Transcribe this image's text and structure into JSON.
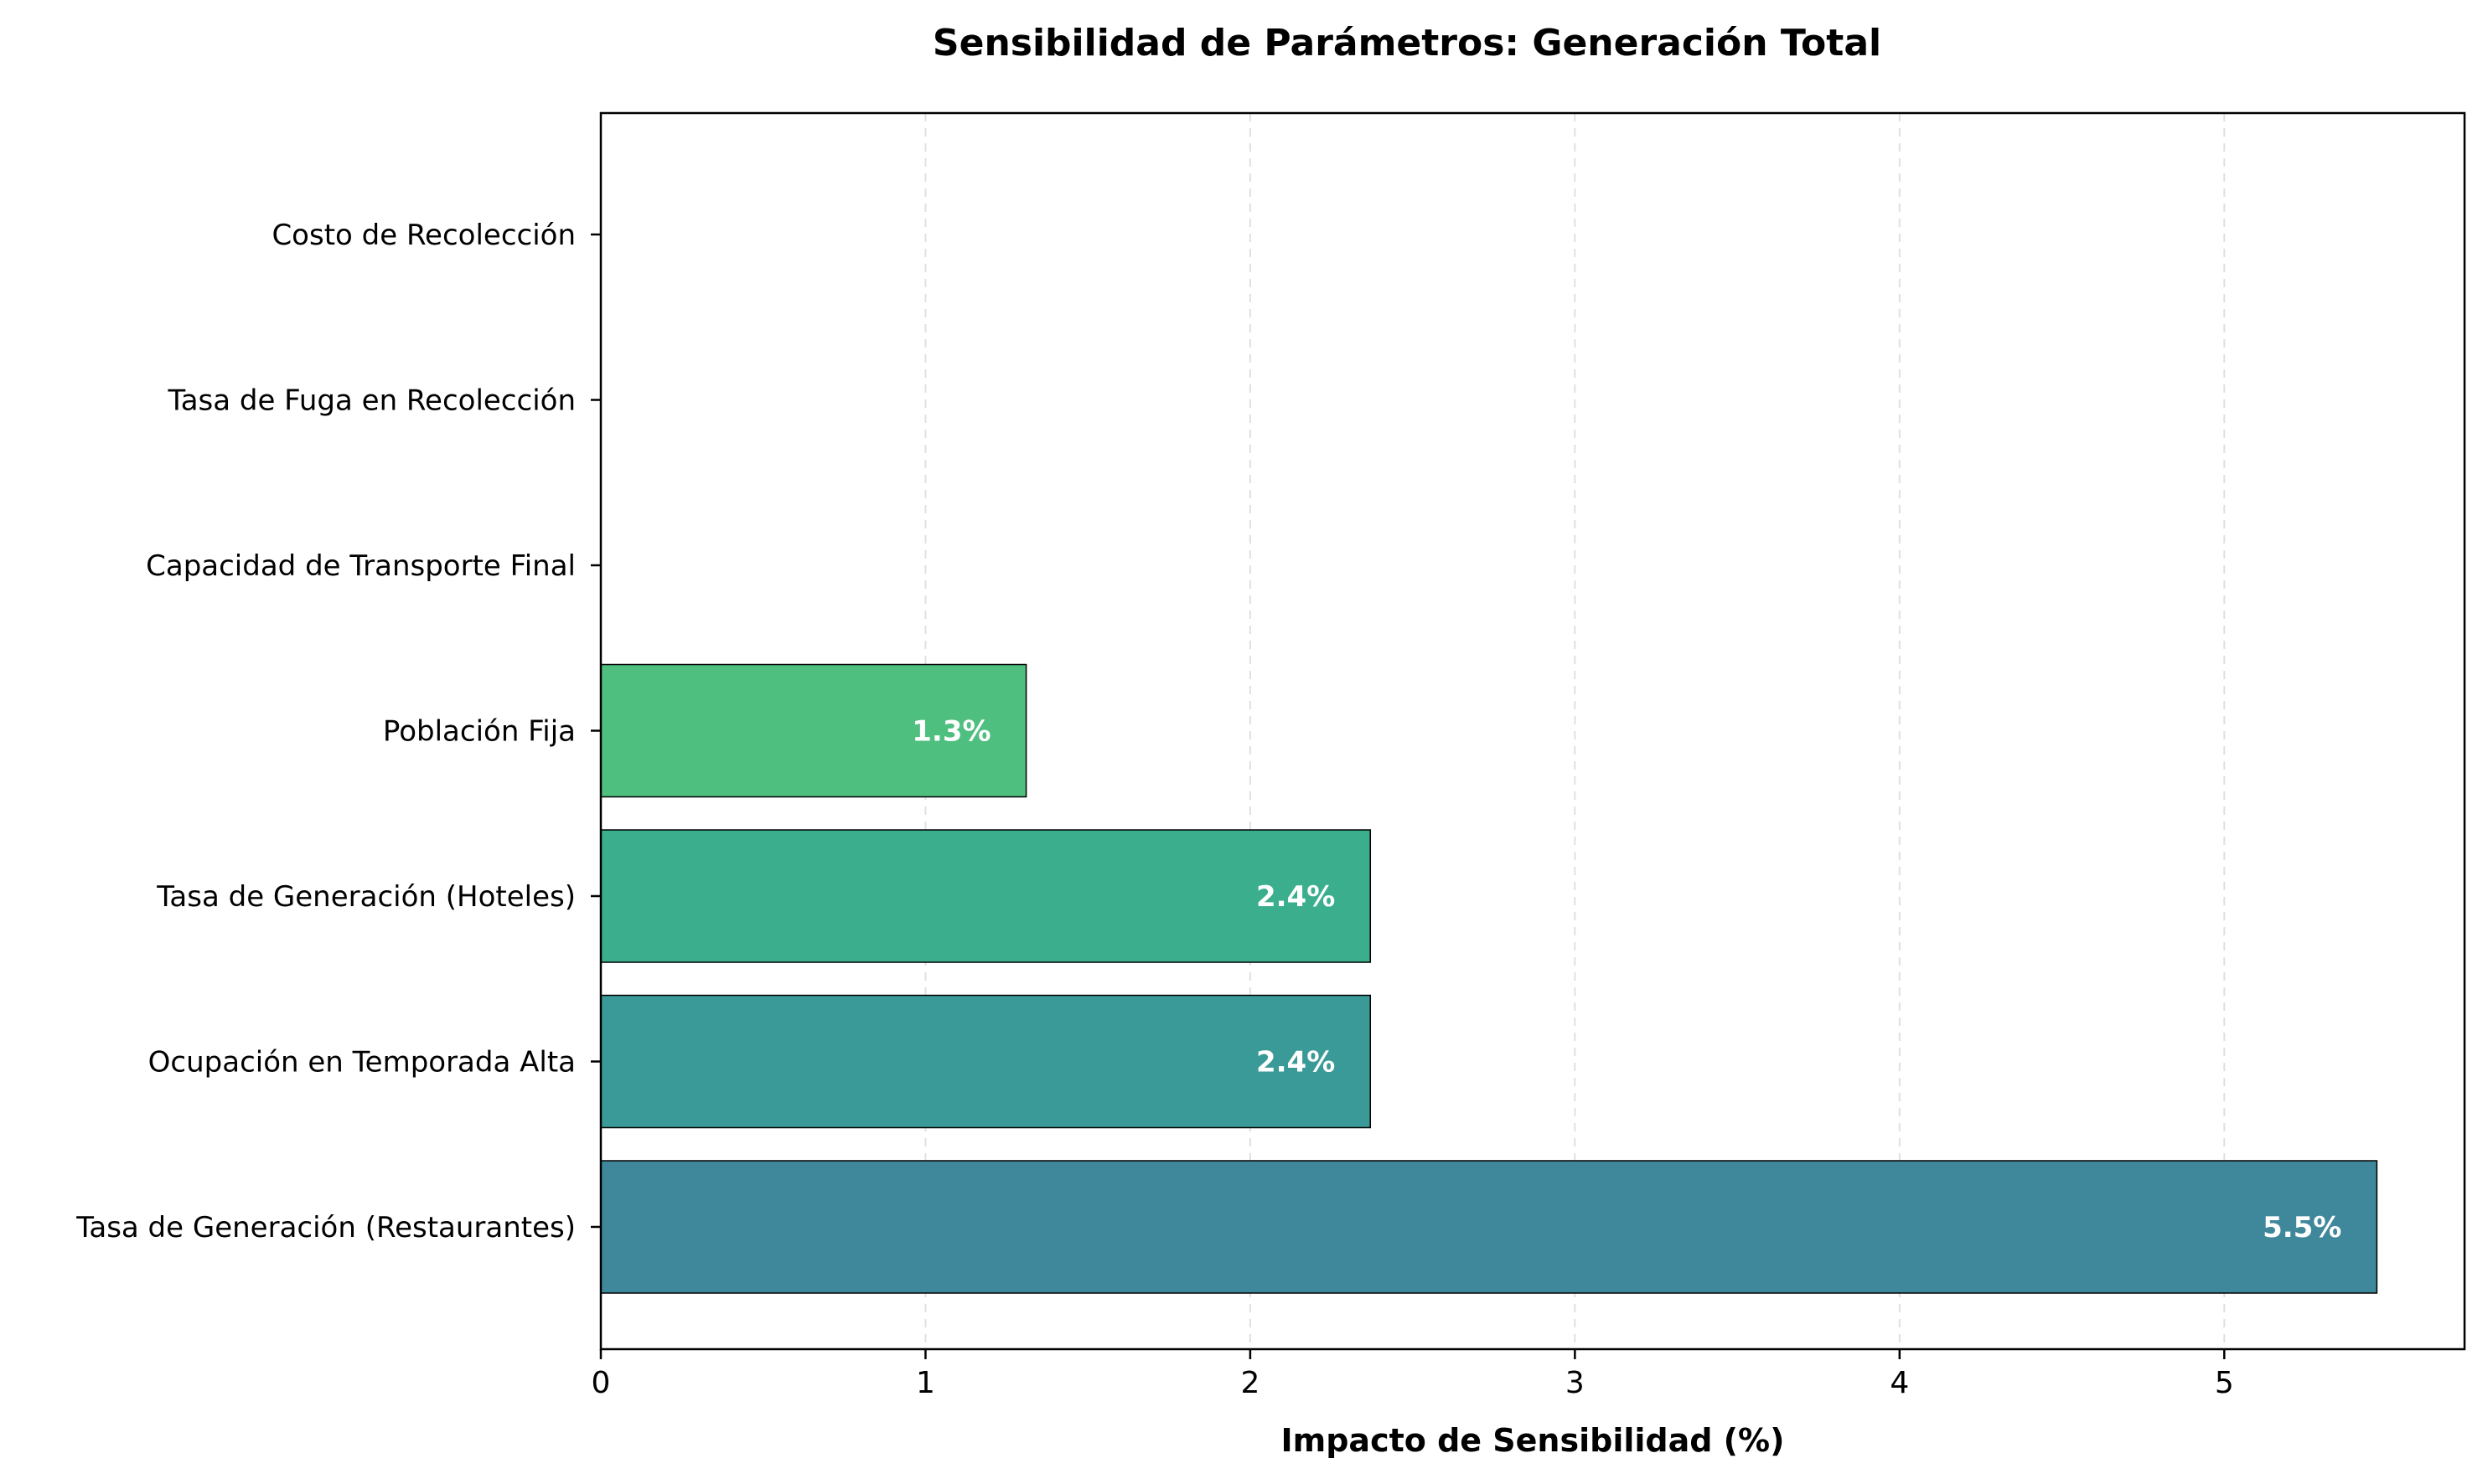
{
  "chart_data": {
    "type": "bar",
    "orientation": "horizontal",
    "title": "Sensibilidad de Parámetros: Generación Total",
    "xlabel": "Impacto de Sensibilidad (%)",
    "ylabel": "",
    "xlim": [
      0,
      5.74
    ],
    "xticks": [
      0,
      1,
      2,
      3,
      4,
      5
    ],
    "grid": "x-dashed",
    "categories": [
      "Tasa de Generación (Restaurantes)",
      "Ocupación en Temporada Alta",
      "Tasa de Generación (Hoteles)",
      "Población Fija",
      "Capacidad de Transporte Final",
      "Tasa de Fuga en Recolección",
      "Costo de Recolección"
    ],
    "values": [
      5.47,
      2.37,
      2.37,
      1.31,
      0,
      0,
      0
    ],
    "labels": [
      "5.5%",
      "2.4%",
      "2.4%",
      "1.3%",
      "",
      "",
      ""
    ],
    "colors": [
      "#3f879a",
      "#3a9a98",
      "#3aae8d",
      "#4fbf7f",
      "#6ccd6a",
      "#9ad84f",
      "#c8df37"
    ]
  }
}
